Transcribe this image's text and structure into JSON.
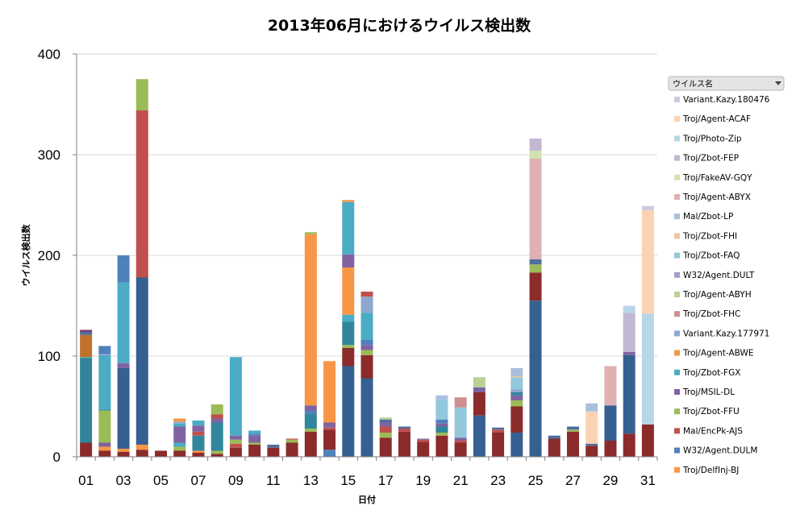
{
  "chart_data": {
    "type": "bar",
    "stacked": true,
    "title": "2013年06月におけるウイルス検出数",
    "xlabel": "日付",
    "ylabel": "ウイルス検出数",
    "ylim": [
      0,
      400
    ],
    "yticks": [
      0,
      100,
      200,
      300,
      400
    ],
    "categories": [
      "01",
      "02",
      "03",
      "04",
      "05",
      "06",
      "07",
      "08",
      "09",
      "10",
      "11",
      "12",
      "13",
      "14",
      "15",
      "16",
      "17",
      "18",
      "19",
      "20",
      "21",
      "22",
      "23",
      "24",
      "25",
      "26",
      "27",
      "28",
      "29",
      "30",
      "31"
    ],
    "x_tick_labels": [
      "01",
      "03",
      "05",
      "07",
      "09",
      "11",
      "13",
      "15",
      "17",
      "19",
      "21",
      "23",
      "25",
      "27",
      "29",
      "31"
    ],
    "legend": {
      "header": "ウイルス名",
      "position": "right",
      "entries": [
        {
          "name": "Variant.Kazy.180476",
          "color": "#c9cbe3"
        },
        {
          "name": "Troj/Agent-ACAF",
          "color": "#fcd2b5"
        },
        {
          "name": "Troj/Photo-Zip",
          "color": "#b9d6e6"
        },
        {
          "name": "Troj/Zbot-FEP",
          "color": "#c2b8d2"
        },
        {
          "name": "Troj/FakeAV-GQY",
          "color": "#d2e1b0"
        },
        {
          "name": "Troj/Agent-ABYX",
          "color": "#dfb1b2"
        },
        {
          "name": "Mal/Zbot-LP",
          "color": "#a9bfdd"
        },
        {
          "name": "Troj/Zbot-FHI",
          "color": "#f7c3a0"
        },
        {
          "name": "Troj/Zbot-FAQ",
          "color": "#93c7dc"
        },
        {
          "name": "W32/Agent.DULT",
          "color": "#a79bc6"
        },
        {
          "name": "Troj/Agent-ABYH",
          "color": "#bcd195"
        },
        {
          "name": "Troj/Zbot-FHC",
          "color": "#d18e8e"
        },
        {
          "name": "Variant.Kazy.177971",
          "color": "#8ea7cf"
        },
        {
          "name": "Troj/Agent-ABWE",
          "color": "#f0994a"
        },
        {
          "name": "Troj/Zbot-FGX",
          "color": "#4bacc6"
        },
        {
          "name": "Troj/MSIL-DL",
          "color": "#8064a2"
        },
        {
          "name": "Troj/Zbot-FFU",
          "color": "#9bbb59"
        },
        {
          "name": "Mal/EncPk-AJS",
          "color": "#c0504d"
        },
        {
          "name": "W32/Agent.DULM",
          "color": "#4f81bd"
        },
        {
          "name": "Troj/DelfInj-BJ",
          "color": "#f79646"
        }
      ]
    },
    "stacks": [
      [
        [
          14,
          "#8b2b2b"
        ],
        [
          84,
          "#31849b"
        ],
        [
          1,
          "#4bacc6"
        ],
        [
          22,
          "#c0712a"
        ],
        [
          3,
          "#4f6f9e"
        ],
        [
          2,
          "#7a3b6e"
        ]
      ],
      [
        [
          6,
          "#8b2b2b"
        ],
        [
          4,
          "#f79646"
        ],
        [
          4,
          "#8064a2"
        ],
        [
          32,
          "#9bbb59"
        ],
        [
          1,
          "#31859c"
        ],
        [
          54,
          "#4bacc6"
        ],
        [
          1,
          "#8ea7cf"
        ],
        [
          8,
          "#4f81bd"
        ]
      ],
      [
        [
          5,
          "#8b2b2b"
        ],
        [
          3,
          "#f79646"
        ],
        [
          80,
          "#366092"
        ],
        [
          5,
          "#8064a2"
        ],
        [
          80,
          "#4bacc6"
        ],
        [
          27,
          "#4f81bd"
        ]
      ],
      [
        [
          7,
          "#8b2b2b"
        ],
        [
          5,
          "#f79646"
        ],
        [
          166,
          "#366092"
        ],
        [
          166,
          "#c0504d"
        ],
        [
          31,
          "#9bbb59"
        ]
      ],
      [
        [
          6,
          "#8b2b2b"
        ]
      ],
      [
        [
          6,
          "#8b2b2b"
        ],
        [
          4,
          "#9bbb59"
        ],
        [
          4,
          "#4bacc6"
        ],
        [
          16,
          "#8064a2"
        ],
        [
          3,
          "#4bacc6"
        ],
        [
          2,
          "#8ea7cf"
        ],
        [
          3,
          "#f79646"
        ]
      ],
      [
        [
          4,
          "#8b2b2b"
        ],
        [
          2,
          "#f79646"
        ],
        [
          15,
          "#31859c"
        ],
        [
          4,
          "#c0504d"
        ],
        [
          6,
          "#8064a2"
        ],
        [
          5,
          "#4bacc6"
        ]
      ],
      [
        [
          3,
          "#8b2b2b"
        ],
        [
          3,
          "#9bbb59"
        ],
        [
          28,
          "#31859c"
        ],
        [
          4,
          "#8064a2"
        ],
        [
          4,
          "#c0504d"
        ],
        [
          10,
          "#9bbb59"
        ]
      ],
      [
        [
          9,
          "#8b2b2b"
        ],
        [
          4,
          "#c0504d"
        ],
        [
          4,
          "#9bbb59"
        ],
        [
          4,
          "#8064a2"
        ],
        [
          78,
          "#4bacc6"
        ]
      ],
      [
        [
          12,
          "#8b2b2b"
        ],
        [
          2,
          "#9bbb59"
        ],
        [
          7,
          "#8064a2"
        ],
        [
          2,
          "#4f81bd"
        ],
        [
          3,
          "#4bacc6"
        ]
      ],
      [
        [
          9,
          "#8b2b2b"
        ],
        [
          3,
          "#4f6f9e"
        ]
      ],
      [
        [
          14,
          "#8b2b2b"
        ],
        [
          3,
          "#9bbb59"
        ],
        [
          1,
          "#c0504d"
        ]
      ],
      [
        [
          25,
          "#8b2b2b"
        ],
        [
          3,
          "#9bbb59"
        ],
        [
          14,
          "#31859c"
        ],
        [
          4,
          "#4f81bd"
        ],
        [
          5,
          "#8064a2"
        ],
        [
          170,
          "#f79646"
        ],
        [
          2,
          "#9bbb59"
        ]
      ],
      [
        [
          7,
          "#4f81bd"
        ],
        [
          20,
          "#8b2b2b"
        ],
        [
          2,
          "#c0504d"
        ],
        [
          5,
          "#8064a2"
        ],
        [
          61,
          "#f79646"
        ]
      ],
      [
        [
          90,
          "#366092"
        ],
        [
          18,
          "#8b2b2b"
        ],
        [
          3,
          "#9bbb59"
        ],
        [
          23,
          "#31859c"
        ],
        [
          7,
          "#4bacc6"
        ],
        [
          47,
          "#f79646"
        ],
        [
          13,
          "#8064a2"
        ],
        [
          52,
          "#4bacc6"
        ],
        [
          2,
          "#f79646"
        ]
      ],
      [
        [
          78,
          "#366092"
        ],
        [
          23,
          "#8b2b2b"
        ],
        [
          5,
          "#9bbb59"
        ],
        [
          5,
          "#8064a2"
        ],
        [
          5,
          "#4f81bd"
        ],
        [
          27,
          "#4bacc6"
        ],
        [
          16,
          "#8ea7cf"
        ],
        [
          5,
          "#c0504d"
        ]
      ],
      [
        [
          19,
          "#8b2b2b"
        ],
        [
          5,
          "#9bbb59"
        ],
        [
          6,
          "#c0504d"
        ],
        [
          4,
          "#8064a2"
        ],
        [
          3,
          "#4f6f9e"
        ],
        [
          2,
          "#bcd195"
        ]
      ],
      [
        [
          25,
          "#8b2b2b"
        ],
        [
          3,
          "#c0504d"
        ],
        [
          2,
          "#4f6f9e"
        ]
      ],
      [
        [
          15,
          "#8b2b2b"
        ],
        [
          2,
          "#c0504d"
        ],
        [
          1,
          "#8064a2"
        ]
      ],
      [
        [
          21,
          "#8b2b2b"
        ],
        [
          3,
          "#9bbb59"
        ],
        [
          6,
          "#31859c"
        ],
        [
          3,
          "#8064a2"
        ],
        [
          4,
          "#4f81bd"
        ],
        [
          20,
          "#93c7dc"
        ],
        [
          4,
          "#a9bfdd"
        ]
      ],
      [
        [
          14,
          "#8b2b2b"
        ],
        [
          2,
          "#c0504d"
        ],
        [
          3,
          "#8064a2"
        ],
        [
          30,
          "#93c7dc"
        ],
        [
          10,
          "#d18e8e"
        ]
      ],
      [
        [
          41,
          "#366092"
        ],
        [
          23,
          "#8b2b2b"
        ],
        [
          5,
          "#8064a2"
        ],
        [
          10,
          "#bcd195"
        ]
      ],
      [
        [
          24,
          "#8b2b2b"
        ],
        [
          3,
          "#c0504d"
        ],
        [
          2,
          "#4f6f9e"
        ]
      ],
      [
        [
          24,
          "#366092"
        ],
        [
          26,
          "#8b2b2b"
        ],
        [
          6,
          "#9bbb59"
        ],
        [
          5,
          "#8064a2"
        ],
        [
          3,
          "#31859c"
        ],
        [
          3,
          "#8ea7cf"
        ],
        [
          12,
          "#93c7dc"
        ],
        [
          1,
          "#f7c3a0"
        ],
        [
          8,
          "#a9bfdd"
        ]
      ],
      [
        [
          155,
          "#366092"
        ],
        [
          28,
          "#8b2b2b"
        ],
        [
          8,
          "#9bbb59"
        ],
        [
          5,
          "#4f6f9e"
        ],
        [
          100,
          "#dfb1b2"
        ],
        [
          8,
          "#d2e1b0"
        ],
        [
          12,
          "#c2b8d2"
        ]
      ],
      [
        [
          18,
          "#8b2b2b"
        ],
        [
          3,
          "#4f6f9e"
        ]
      ],
      [
        [
          25,
          "#8b2b2b"
        ],
        [
          2,
          "#9bbb59"
        ],
        [
          3,
          "#4f6f9e"
        ]
      ],
      [
        [
          11,
          "#8b2b2b"
        ],
        [
          2,
          "#4f6f9e"
        ],
        [
          32,
          "#fcd2b5"
        ],
        [
          8,
          "#a9bfdd"
        ]
      ],
      [
        [
          16,
          "#8b2b2b"
        ],
        [
          35,
          "#366092"
        ],
        [
          39,
          "#dfb1b2"
        ]
      ],
      [
        [
          23,
          "#8b2b2b"
        ],
        [
          78,
          "#366092"
        ],
        [
          3,
          "#8064a2"
        ],
        [
          39,
          "#c2b8d2"
        ],
        [
          7,
          "#b9d6e6"
        ]
      ],
      [
        [
          32,
          "#8b2b2b"
        ],
        [
          110,
          "#b9d6e6"
        ],
        [
          103,
          "#fcd2b5"
        ],
        [
          4,
          "#c9cbe3"
        ]
      ]
    ]
  }
}
